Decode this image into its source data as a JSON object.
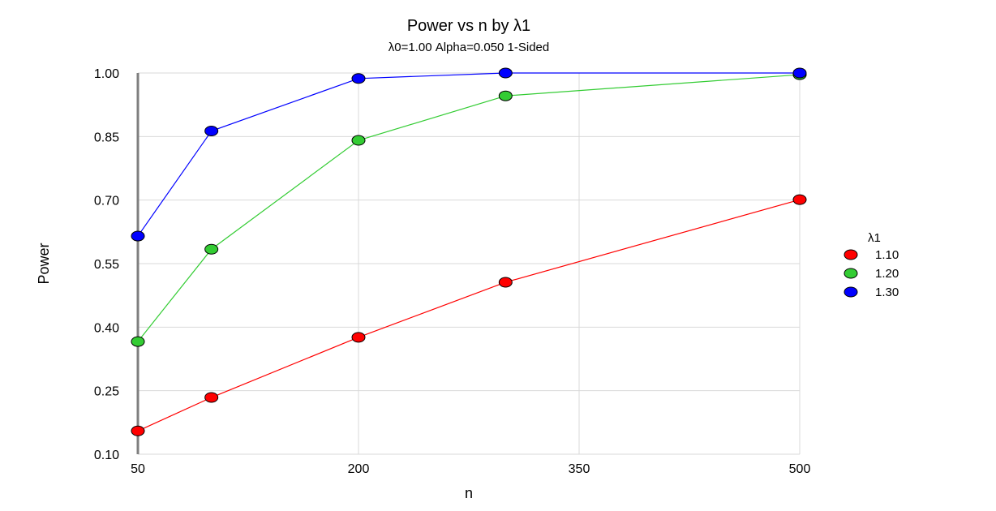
{
  "chart_data": {
    "type": "line",
    "title": "Power vs n by λ1",
    "subtitle": "λ0=1.00 Alpha=0.050 1-Sided",
    "xlabel": "n",
    "ylabel": "Power",
    "x": [
      50,
      100,
      200,
      300,
      500
    ],
    "xticks": [
      50,
      200,
      350,
      500
    ],
    "xtick_labels": [
      "50",
      "200",
      "350",
      "500"
    ],
    "yticks": [
      0.1,
      0.25,
      0.4,
      0.55,
      0.7,
      0.85,
      1.0
    ],
    "ytick_labels": [
      "0.10",
      "0.25",
      "0.40",
      "0.55",
      "0.70",
      "0.85",
      "1.00"
    ],
    "xlim": [
      50,
      500
    ],
    "ylim": [
      0.1,
      1.0
    ],
    "grid": true,
    "legend_position": "right",
    "legend_title": "λ1",
    "series": [
      {
        "name": "1.10",
        "color": "#ff0000",
        "values": [
          0.155,
          0.234,
          0.376,
          0.506,
          0.701
        ]
      },
      {
        "name": "1.20",
        "color": "#33cc33",
        "values": [
          0.366,
          0.584,
          0.841,
          0.946,
          0.996
        ]
      },
      {
        "name": "1.30",
        "color": "#0000ff",
        "values": [
          0.615,
          0.863,
          0.987,
          1.0,
          1.0
        ]
      }
    ]
  }
}
